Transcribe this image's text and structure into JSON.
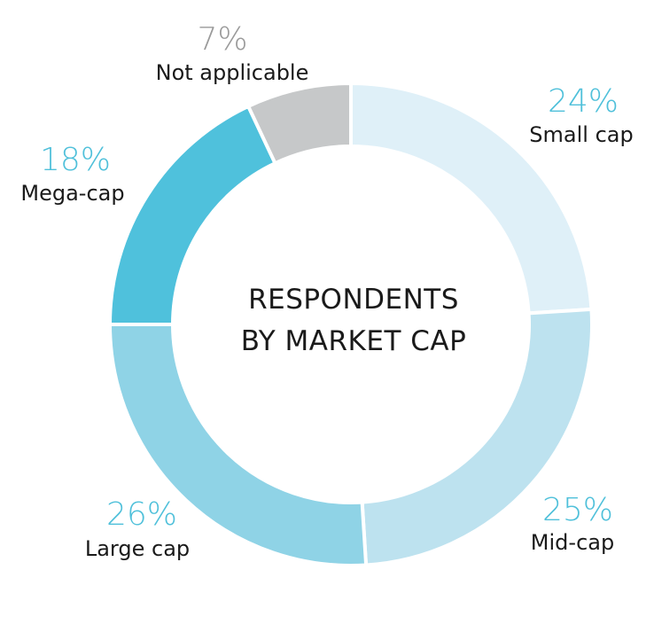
{
  "chart_data": {
    "type": "pie",
    "title": "RESPONDENTS BY MARKET CAP",
    "title_lines": [
      "RESPONDENTS",
      "BY MARKET CAP"
    ],
    "slices": [
      {
        "label": "Small cap",
        "value": 24,
        "display": "24%",
        "color": "#dff0f8",
        "label_color": "#4fc0da"
      },
      {
        "label": "Mid-cap",
        "value": 25,
        "display": "25%",
        "color": "#bde2ef",
        "label_color": "#4fc0da"
      },
      {
        "label": "Large cap",
        "value": 26,
        "display": "26%",
        "color": "#8fd3e6",
        "label_color": "#4fc0da"
      },
      {
        "label": "Mega-cap",
        "value": 18,
        "display": "18%",
        "color": "#4fc1dc",
        "label_color": "#4fc0da"
      },
      {
        "label": "Not applicable",
        "value": 7,
        "display": "7%",
        "color": "#c6c8c9",
        "label_color": "#9a9a9a"
      }
    ]
  }
}
